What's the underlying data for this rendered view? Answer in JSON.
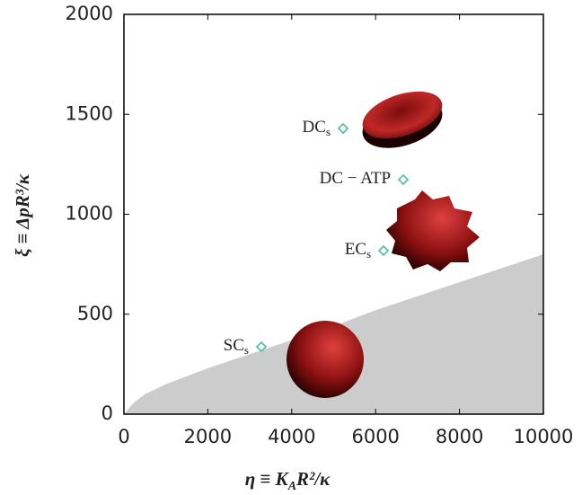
{
  "chart_data": {
    "type": "scatter",
    "xlabel": {
      "lead": "η ≡ K",
      "sub": "A",
      "tail": "R²/κ"
    },
    "ylabel": "ξ ≡ ΔpR³/κ",
    "xlim": [
      0,
      10000
    ],
    "xticks": [
      0,
      2000,
      4000,
      6000,
      8000,
      10000
    ],
    "ylim": [
      0,
      2000
    ],
    "yticks": [
      0,
      500,
      1000,
      1500,
      2000
    ],
    "marker_color": "#5cbfa6",
    "region_color": "#cccccc",
    "region": {
      "x": [
        0,
        250,
        500,
        1000,
        2000,
        3000,
        4000,
        5000,
        6000,
        7000,
        8000,
        9000,
        10000
      ],
      "y": [
        0,
        60,
        100,
        150,
        230,
        300,
        370,
        440,
        520,
        590,
        660,
        730,
        800
      ]
    },
    "points": [
      {
        "label": "DC",
        "subscript": "s",
        "x": 5225,
        "y": 1429
      },
      {
        "label": "DC − ATP",
        "x": 6660,
        "y": 1173
      },
      {
        "label": "EC",
        "subscript": "s",
        "x": 6190,
        "y": 818
      },
      {
        "label": "SC",
        "subscript": "s",
        "x": 3276,
        "y": 337
      }
    ]
  }
}
